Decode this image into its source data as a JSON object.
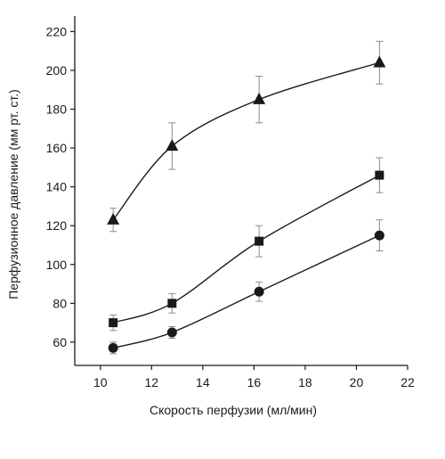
{
  "chart_data": {
    "type": "scatter",
    "title": "",
    "xlabel": "Скорость перфузии (мл/мин)",
    "ylabel": "Перфузионное давление (мм рт. ст.)",
    "xlim": [
      9,
      22
    ],
    "ylim": [
      48,
      228
    ],
    "xticks": [
      10,
      12,
      14,
      16,
      18,
      20,
      22
    ],
    "yticks": [
      60,
      80,
      100,
      120,
      140,
      160,
      180,
      200,
      220
    ],
    "grid": false,
    "legend": "none",
    "series": [
      {
        "marker": "triangle",
        "x": [
          10.5,
          12.8,
          16.2,
          20.9
        ],
        "y": [
          123,
          161,
          185,
          204
        ],
        "err_low": [
          6,
          12,
          12,
          11
        ],
        "err_high": [
          6,
          12,
          12,
          11
        ],
        "curve": "fit"
      },
      {
        "marker": "square",
        "x": [
          10.5,
          12.8,
          16.2,
          20.9
        ],
        "y": [
          70,
          80,
          112,
          146
        ],
        "err_low": [
          4,
          5,
          8,
          9
        ],
        "err_high": [
          4,
          5,
          8,
          9
        ],
        "curve": "fit"
      },
      {
        "marker": "circle",
        "x": [
          10.5,
          12.8,
          16.2,
          20.9
        ],
        "y": [
          57,
          65,
          86,
          115
        ],
        "err_low": [
          3,
          3,
          5,
          8
        ],
        "err_high": [
          3,
          3,
          5,
          8
        ],
        "curve": "fit"
      }
    ],
    "colors": {
      "ink": "#1a1a1a",
      "error_bar": "#8c8c8c"
    }
  }
}
